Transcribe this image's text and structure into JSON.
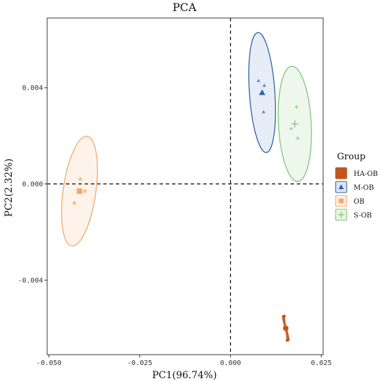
{
  "chart_data": {
    "type": "scatter",
    "title": "PCA",
    "xlabel": "PC1(96.74%)",
    "ylabel": "PC2(2.32%)",
    "xlim": [
      -0.0505,
      0.0255
    ],
    "ylim": [
      -0.0071,
      0.0069
    ],
    "xticks": [
      -0.05,
      -0.025,
      0.0,
      0.025
    ],
    "xtick_labels": [
      "-0.050",
      "-0.025",
      "0.000",
      "0.025"
    ],
    "yticks": [
      -0.004,
      0.0,
      0.004
    ],
    "ytick_labels": [
      "-0.004",
      "0.000",
      "0.004"
    ],
    "grid": false,
    "reference_lines": {
      "x": 0.0,
      "y": 0.0,
      "style": "dashed"
    },
    "legend": {
      "title": "Group",
      "placement": "right"
    },
    "series": [
      {
        "name": "HA-OB",
        "marker": "circle",
        "color": "#C0561B",
        "fill": "#C0561B",
        "centroid": [
          0.0152,
          -0.006
        ],
        "points": [
          [
            0.0148,
            -0.0055
          ],
          [
            0.0152,
            -0.006
          ],
          [
            0.0156,
            -0.0065
          ]
        ],
        "ellipse": {
          "cx": 0.0152,
          "cy": -0.006,
          "rx": 0.0002,
          "ry": 0.00055,
          "angle": -15
        }
      },
      {
        "name": "M-OB",
        "marker": "triangle",
        "color": "#2E62A8",
        "fill": "#DCE6F2",
        "centroid": [
          0.0087,
          0.0038
        ],
        "points": [
          [
            0.0077,
            0.0043
          ],
          [
            0.0093,
            0.0041
          ],
          [
            0.0091,
            0.003
          ]
        ],
        "ellipse": {
          "cx": 0.0087,
          "cy": 0.0038,
          "rx": 0.0035,
          "ry": 0.0025,
          "angle": -4
        }
      },
      {
        "name": "OB",
        "marker": "square",
        "color": "#F3A868",
        "fill": "#FDEEE2",
        "centroid": [
          -0.0416,
          -0.0003
        ],
        "points": [
          [
            -0.0414,
            0.0002
          ],
          [
            -0.0401,
            -0.0003
          ],
          [
            -0.043,
            -0.0008
          ]
        ],
        "ellipse": {
          "cx": -0.0416,
          "cy": -0.0003,
          "rx": 0.0045,
          "ry": 0.0023,
          "angle": 8
        }
      },
      {
        "name": "S-OB",
        "marker": "plus",
        "color": "#7DC57A",
        "fill": "#E7F4E4",
        "centroid": [
          0.0177,
          0.0025
        ],
        "points": [
          [
            0.0182,
            0.0032
          ],
          [
            0.0167,
            0.0023
          ],
          [
            0.0185,
            0.0019
          ]
        ],
        "ellipse": {
          "cx": 0.0177,
          "cy": 0.0025,
          "rx": 0.0045,
          "ry": 0.0024,
          "angle": -3
        }
      }
    ]
  }
}
